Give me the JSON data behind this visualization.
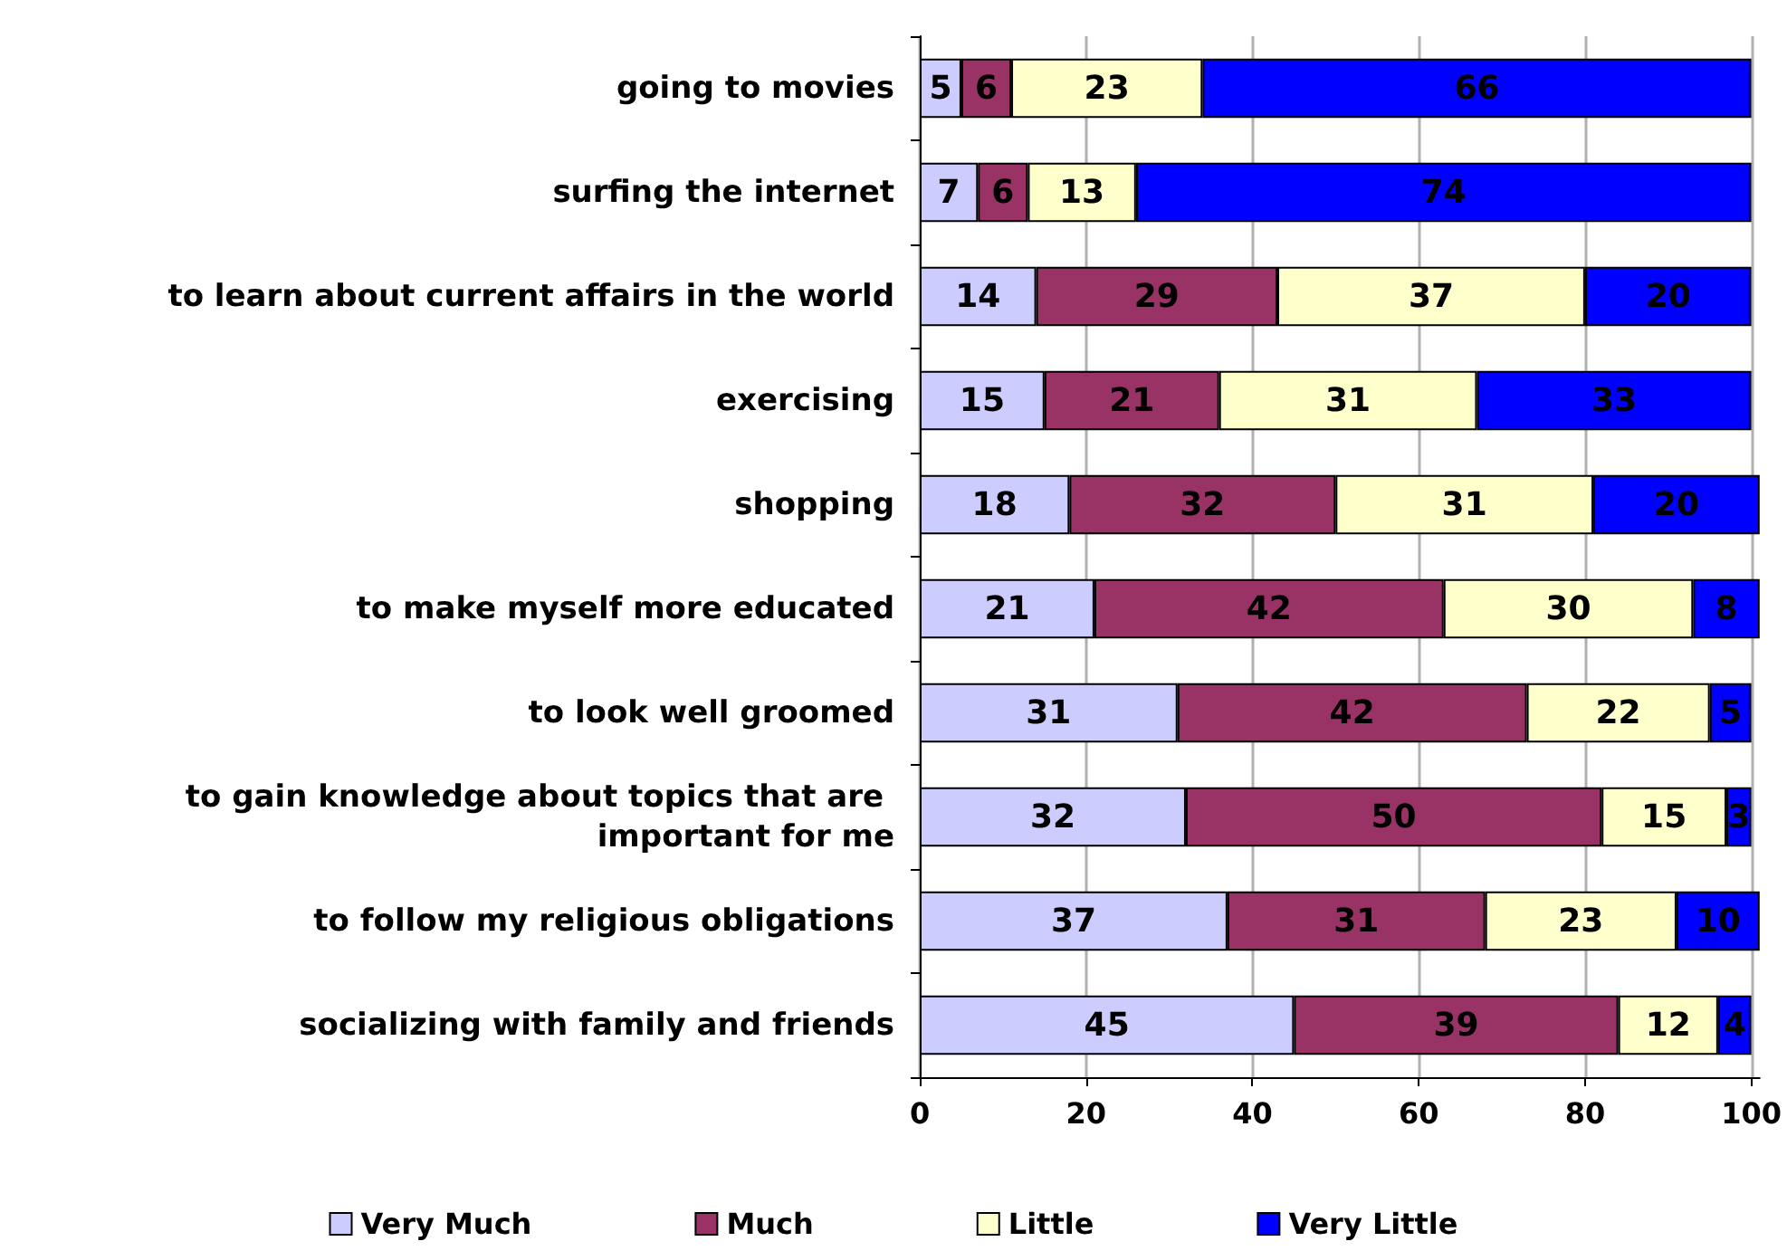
{
  "chart_data": {
    "type": "bar",
    "orientation": "horizontal",
    "stacked": true,
    "data_labels": true,
    "grid": "x",
    "legend": "bottom",
    "categories": [
      "going to movies",
      "surfing the internet",
      "to learn about current affairs in the world",
      "exercising",
      "shopping",
      "to make myself more educated",
      "to look well groomed",
      "to gain knowledge about topics that are important for me",
      "to follow my religious obligations",
      "socializing with family and friends"
    ],
    "series": [
      {
        "name": "Very Much",
        "color": "#ccccff",
        "values": [
          5,
          7,
          14,
          15,
          18,
          21,
          31,
          32,
          37,
          45
        ]
      },
      {
        "name": "Much",
        "color": "#993366",
        "values": [
          6,
          6,
          29,
          21,
          32,
          42,
          42,
          50,
          31,
          39
        ]
      },
      {
        "name": "Little",
        "color": "#ffffcc",
        "values": [
          23,
          13,
          37,
          31,
          31,
          30,
          22,
          15,
          23,
          12
        ]
      },
      {
        "name": "Very Little",
        "color": "#0000ff",
        "values": [
          66,
          74,
          20,
          33,
          20,
          8,
          5,
          3,
          10,
          4
        ]
      }
    ],
    "xlim": [
      0,
      101
    ],
    "xticks": [
      0,
      20,
      40,
      60,
      80,
      100
    ]
  }
}
